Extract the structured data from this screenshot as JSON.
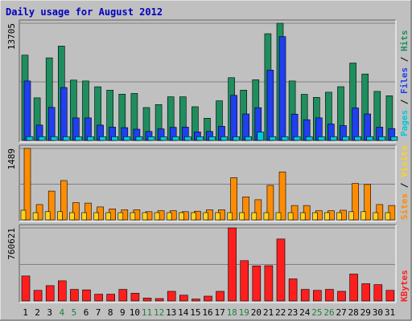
{
  "chart_data": {
    "type": "bar",
    "title": "Daily usage for August 2012",
    "categories": [
      "1",
      "2",
      "3",
      "4",
      "5",
      "6",
      "7",
      "8",
      "9",
      "10",
      "11",
      "12",
      "13",
      "14",
      "15",
      "16",
      "17",
      "18",
      "19",
      "20",
      "21",
      "22",
      "23",
      "24",
      "25",
      "26",
      "27",
      "28",
      "29",
      "30",
      "31"
    ],
    "weekend_days": [
      4,
      5,
      11,
      12,
      18,
      19,
      25,
      26
    ],
    "panels": [
      {
        "name": "hits_files_pages",
        "ymax_label": "13705",
        "ymax": 13705,
        "series": [
          {
            "name": "Hits",
            "color": "#1e8e5e",
            "values": [
              9980,
              4980,
              9660,
              11040,
              7060,
              6960,
              6280,
              5880,
              5420,
              5500,
              3850,
              4200,
              5110,
              5110,
              3940,
              2600,
              4640,
              7340,
              5890,
              7100,
              12480,
              13705,
              6960,
              5400,
              5040,
              5640,
              6290,
              9060,
              7770,
              5740,
              5230
            ]
          },
          {
            "name": "Files",
            "color": "#1f3ff0",
            "values": [
              6960,
              1790,
              3870,
              6200,
              2640,
              2640,
              1790,
              1560,
              1500,
              1310,
              1050,
              1350,
              1540,
              1560,
              1000,
              1050,
              1650,
              5280,
              3100,
              3830,
              8220,
              12150,
              3080,
              2420,
              2650,
              1920,
              1740,
              3800,
              3100,
              1560,
              1390
            ]
          },
          {
            "name": "Pages",
            "color": "#00c8dc",
            "values": [
              440,
              440,
              440,
              440,
              440,
              440,
              440,
              440,
              440,
              440,
              440,
              440,
              440,
              440,
              440,
              440,
              440,
              440,
              440,
              980,
              440,
              440,
              440,
              440,
              440,
              440,
              440,
              440,
              440,
              440,
              440
            ]
          }
        ]
      },
      {
        "name": "visits_sites",
        "ymax_label": "1489",
        "ymax": 1489,
        "series": [
          {
            "name": "Visits",
            "color": "#ff8c00",
            "values": [
              1489,
              320,
              600,
              820,
              360,
              350,
              270,
              230,
              210,
              210,
              170,
              190,
              190,
              170,
              180,
              210,
              210,
              880,
              480,
              420,
              720,
              1000,
              300,
              300,
              190,
              190,
              200,
              760,
              740,
              320,
              300
            ]
          },
          {
            "name": "Sites",
            "color": "#ffd21e",
            "values": [
              200,
              150,
              170,
              170,
              150,
              150,
              150,
              150,
              150,
              150,
              150,
              150,
              150,
              150,
              150,
              150,
              150,
              150,
              150,
              150,
              150,
              150,
              150,
              150,
              150,
              150,
              150,
              170,
              170,
              150,
              150
            ]
          }
        ]
      },
      {
        "name": "kbytes",
        "ymax_label": "760621",
        "ymax": 760621,
        "series": [
          {
            "name": "KBytes",
            "color": "#ff1e1e",
            "values": [
              260000,
              110000,
              160000,
              210000,
              120000,
              115000,
              70000,
              70000,
              120000,
              80000,
              30000,
              25000,
              100000,
              60000,
              20000,
              50000,
              100000,
              760621,
              420000,
              365000,
              368000,
              645000,
              230000,
              120000,
              110000,
              120000,
              100000,
              280000,
              180000,
              170000,
              110000
            ]
          }
        ]
      }
    ],
    "legend_right": {
      "panel1": [
        {
          "text": "Pages",
          "color": "#00c8dc"
        },
        {
          "text": "Files",
          "color": "#1f3ff0"
        },
        {
          "text": "Hits",
          "color": "#1e8e5e"
        }
      ],
      "panel2": [
        {
          "text": "Sites",
          "color": "#ff8c00"
        },
        {
          "text": "Visits",
          "color": "#ffd21e"
        }
      ],
      "panel3": [
        {
          "text": "KBytes",
          "color": "#ff1e1e"
        }
      ]
    },
    "colors": {
      "background": "#c0c0c0",
      "title": "#0000c0",
      "weekend_label": "#208040",
      "weekday_label": "#000000",
      "gridline": "#808080"
    }
  }
}
